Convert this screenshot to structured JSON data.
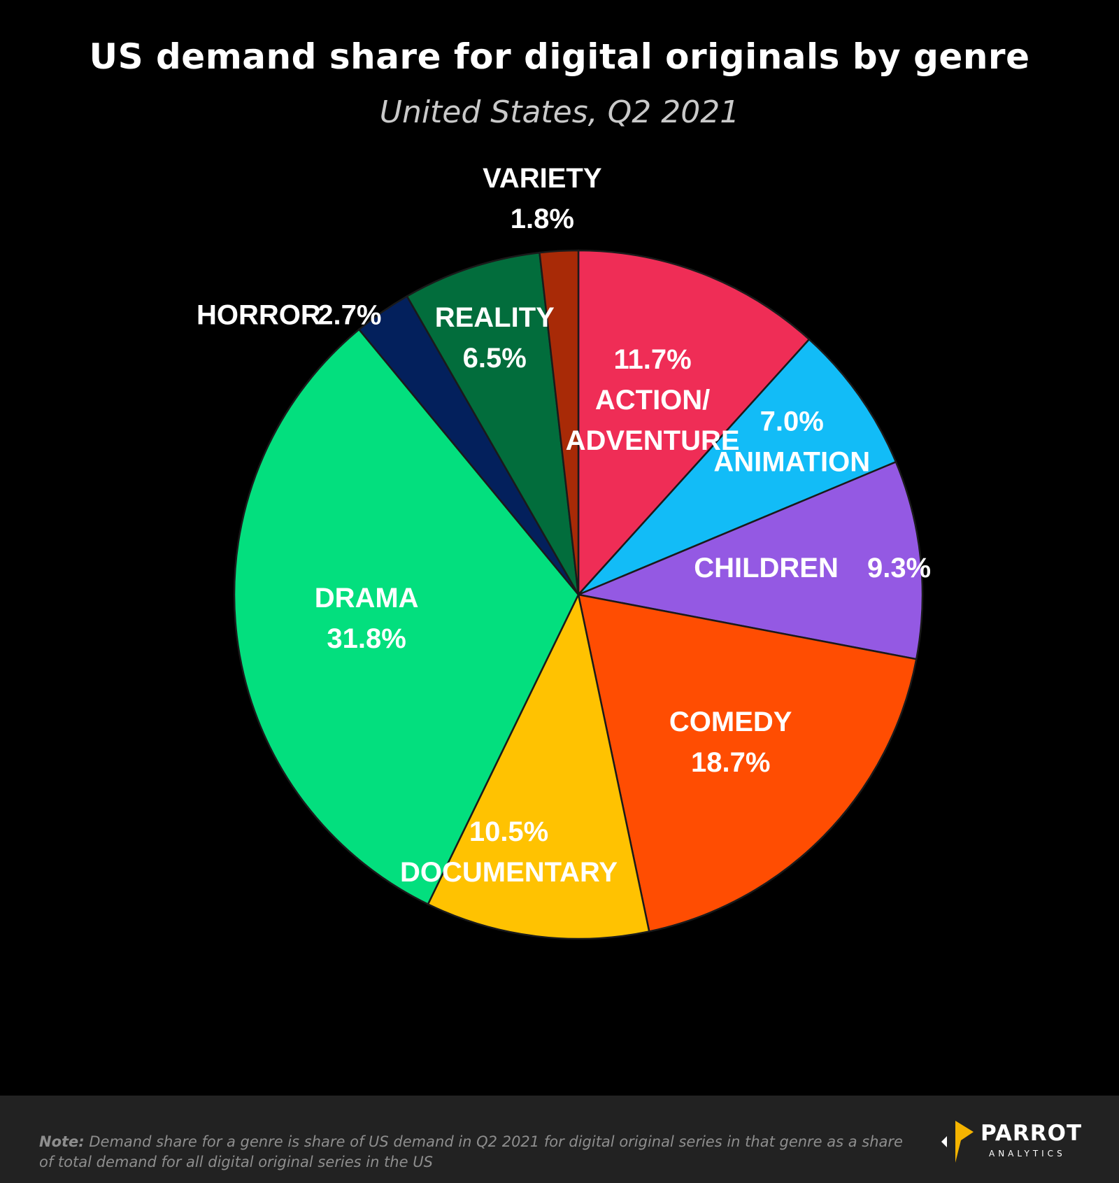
{
  "chart_data": {
    "type": "pie",
    "title": "US demand share for digital originals by genre",
    "subtitle": "United States, Q2 2021",
    "slices": [
      {
        "label": "ACTION/ ADVENTURE",
        "value": 11.7,
        "value_label": "11.7%",
        "color": "#ef2d56"
      },
      {
        "label": "ANIMATION",
        "value": 7.0,
        "value_label": "7.0%",
        "color": "#12bcf7"
      },
      {
        "label": "CHILDREN",
        "value": 9.3,
        "value_label": "9.3%",
        "color": "#9459e3"
      },
      {
        "label": "COMEDY",
        "value": 18.7,
        "value_label": "18.7%",
        "color": "#ff4d02"
      },
      {
        "label": "DOCUMENTARY",
        "value": 10.5,
        "value_label": "10.5%",
        "color": "#ffc201"
      },
      {
        "label": "DRAMA",
        "value": 31.8,
        "value_label": "31.8%",
        "color": "#03df7e"
      },
      {
        "label": "HORROR",
        "value": 2.7,
        "value_label": "2.7%",
        "color": "#03205c"
      },
      {
        "label": "REALITY",
        "value": 6.5,
        "value_label": "6.5%",
        "color": "#026d3c"
      },
      {
        "label": "VARIETY",
        "value": 1.8,
        "value_label": "1.8%",
        "color": "#a82a07"
      }
    ],
    "start_angle": "12 o'clock, clockwise"
  },
  "footer": {
    "note_label": "Note:",
    "note_text": "Demand share for a genre is share of US demand in Q2 2021 for digital original series in that genre as a share of total demand for all digital original series in the US"
  },
  "logo": {
    "wordmark": "PARROT",
    "subtext": "ANALYTICS",
    "color": "#f5b400"
  }
}
